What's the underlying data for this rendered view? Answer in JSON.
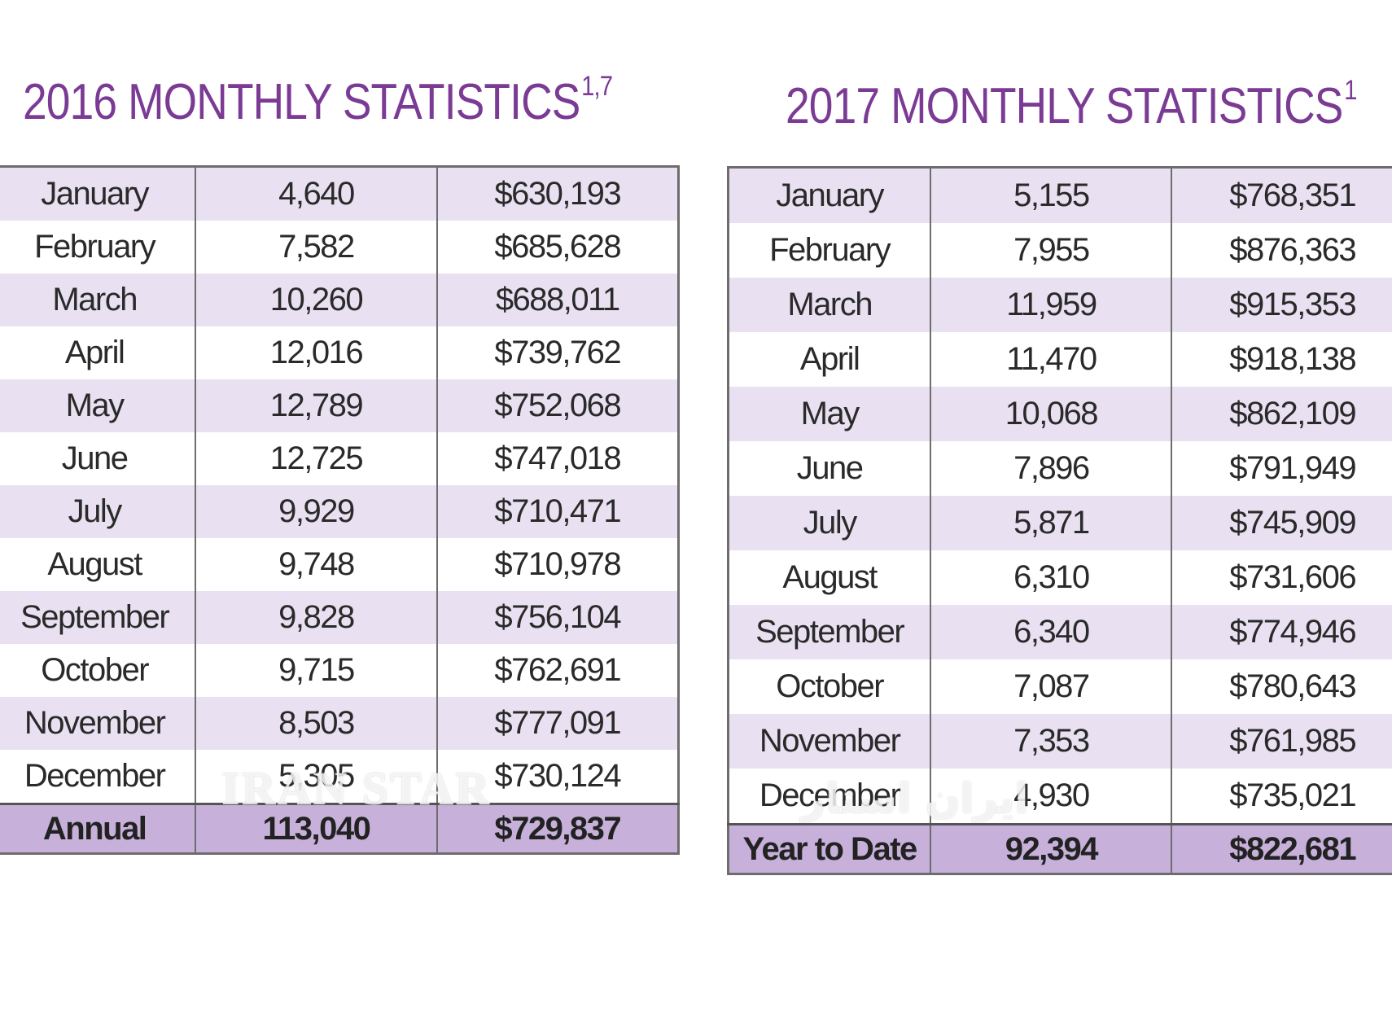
{
  "tables": [
    {
      "title": "2016 MONTHLY STATISTICS",
      "footnote": "1,7",
      "rows": [
        {
          "month": "January",
          "count": "4,640",
          "price": "$630,193"
        },
        {
          "month": "February",
          "count": "7,582",
          "price": "$685,628"
        },
        {
          "month": "March",
          "count": "10,260",
          "price": "$688,011"
        },
        {
          "month": "April",
          "count": "12,016",
          "price": "$739,762"
        },
        {
          "month": "May",
          "count": "12,789",
          "price": "$752,068"
        },
        {
          "month": "June",
          "count": "12,725",
          "price": "$747,018"
        },
        {
          "month": "July",
          "count": "9,929",
          "price": "$710,471"
        },
        {
          "month": "August",
          "count": "9,748",
          "price": "$710,978"
        },
        {
          "month": "September",
          "count": "9,828",
          "price": "$756,104"
        },
        {
          "month": "October",
          "count": "9,715",
          "price": "$762,691"
        },
        {
          "month": "November",
          "count": "8,503",
          "price": "$777,091"
        },
        {
          "month": "December",
          "count": "5,305",
          "price": "$730,124"
        }
      ],
      "total": {
        "label": "Annual",
        "count": "113,040",
        "price": "$729,837"
      }
    },
    {
      "title": "2017 MONTHLY STATISTICS",
      "footnote": "1",
      "rows": [
        {
          "month": "January",
          "count": "5,155",
          "price": "$768,351"
        },
        {
          "month": "February",
          "count": "7,955",
          "price": "$876,363"
        },
        {
          "month": "March",
          "count": "11,959",
          "price": "$915,353"
        },
        {
          "month": "April",
          "count": "11,470",
          "price": "$918,138"
        },
        {
          "month": "May",
          "count": "10,068",
          "price": "$862,109"
        },
        {
          "month": "June",
          "count": "7,896",
          "price": "$791,949"
        },
        {
          "month": "July",
          "count": "5,871",
          "price": "$745,909"
        },
        {
          "month": "August",
          "count": "6,310",
          "price": "$731,606"
        },
        {
          "month": "September",
          "count": "6,340",
          "price": "$774,946"
        },
        {
          "month": "October",
          "count": "7,087",
          "price": "$780,643"
        },
        {
          "month": "November",
          "count": "7,353",
          "price": "$761,985"
        },
        {
          "month": "December",
          "count": "4,930",
          "price": "$735,021"
        }
      ],
      "total": {
        "label": "Year to Date",
        "count": "92,394",
        "price": "$822,681"
      }
    }
  ],
  "watermarks": {
    "latin": "IRAN STAR",
    "persian": "ایران استار"
  },
  "colors": {
    "title": "#7b3b95",
    "row_shaded": "#e9e1f1",
    "row_plain": "#ffffff",
    "total_row": "#c7b0da",
    "border": "#6d6d6d"
  }
}
